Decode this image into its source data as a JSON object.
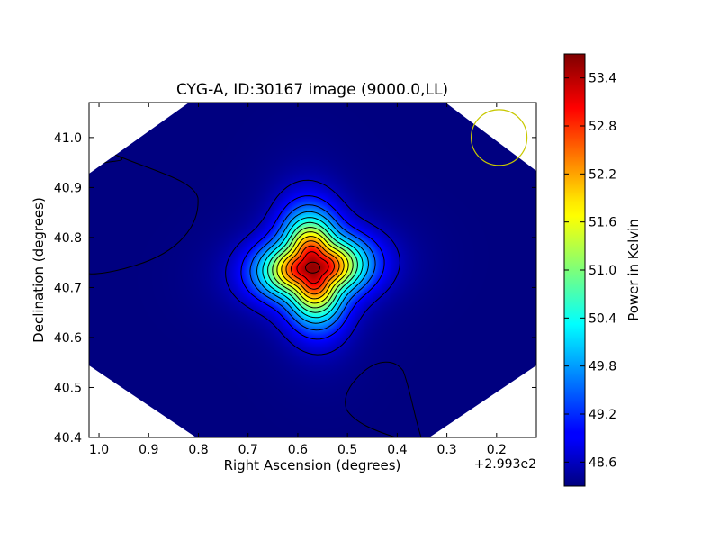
{
  "chart_data": {
    "type": "heatmap",
    "title": "CYG-A, ID:30167 image (9000.0,LL)",
    "xlabel": "Right Ascension (degrees)",
    "ylabel": "Declination (degrees)",
    "x_offset_label": "+2.993e2",
    "x_ticks": [
      1.0,
      0.9,
      0.8,
      0.7,
      0.6,
      0.5,
      0.4,
      0.3,
      0.2
    ],
    "x_tick_labels": [
      "1.0",
      "0.9",
      "0.8",
      "0.7",
      "0.6",
      "0.5",
      "0.4",
      "0.3",
      "0.2"
    ],
    "xlim": [
      1.02,
      0.12
    ],
    "y_ticks": [
      40.4,
      40.5,
      40.6,
      40.7,
      40.8,
      40.9,
      41.0
    ],
    "y_tick_labels": [
      "40.4",
      "40.5",
      "40.6",
      "40.7",
      "40.8",
      "40.9",
      "41.0"
    ],
    "ylim": [
      40.4,
      41.07
    ],
    "source_peak": {
      "x": 0.57,
      "y": 40.74,
      "value": 53.6
    },
    "background_value": 48.3,
    "colorbar": {
      "label": "Power in Kelvin",
      "ticks": [
        48.6,
        49.2,
        49.8,
        50.4,
        51.0,
        51.6,
        52.2,
        52.8,
        53.4
      ],
      "tick_labels": [
        "48.6",
        "49.2",
        "49.8",
        "50.4",
        "51.0",
        "51.6",
        "52.2",
        "52.8",
        "53.4"
      ],
      "range": [
        48.3,
        53.7
      ],
      "colormap": "jet"
    },
    "beam_circle": {
      "center_x": 0.195,
      "center_y": 41.0,
      "color": "#c8c800"
    },
    "contour_color": "#000000",
    "contour_levels": 12
  }
}
